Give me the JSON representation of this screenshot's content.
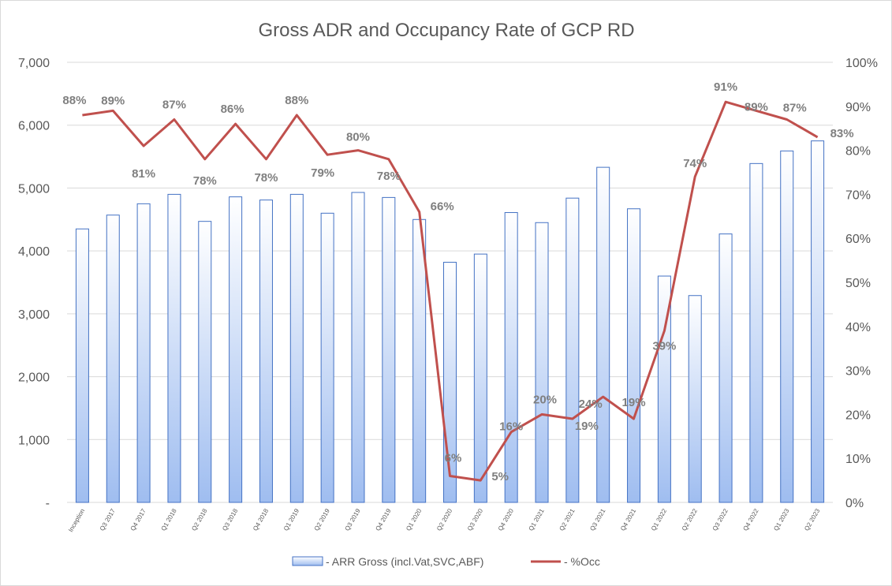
{
  "chart_data": {
    "type": "bar+line",
    "title": "Gross ADR and Occupancy Rate of GCP RD",
    "categories": [
      "Inception",
      "Q3 2017",
      "Q4 2017",
      "Q1 2018",
      "Q2 2018",
      "Q3 2018",
      "Q4 2018",
      "Q1 2019",
      "Q2 2019",
      "Q3 2019",
      "Q4 2019",
      "Q1 2020",
      "Q2 2020",
      "Q3 2020",
      "Q4 2020",
      "Q1 2021",
      "Q2 2021",
      "Q3 2021",
      "Q4 2021",
      "Q1 2022",
      "Q2 2022",
      "Q3 2022",
      "Q4 2022",
      "Q1 2023",
      "Q2 2023"
    ],
    "y_left": {
      "ylim": [
        0,
        7000
      ],
      "ticks": [
        "-",
        "1,000",
        "2,000",
        "3,000",
        "4,000",
        "5,000",
        "6,000",
        "7,000"
      ]
    },
    "y_right": {
      "ylim": [
        0,
        100
      ],
      "ticks": [
        "0%",
        "10%",
        "20%",
        "30%",
        "40%",
        "50%",
        "60%",
        "70%",
        "80%",
        "90%",
        "100%"
      ]
    },
    "grid": true,
    "legend_position": "bottom",
    "series": [
      {
        "name": "- ARR Gross (incl.Vat,SVC,ABF)",
        "kind": "bar",
        "axis": "left",
        "color": "#4472c4",
        "values": [
          4350,
          4570,
          4750,
          4900,
          4470,
          4860,
          4810,
          4900,
          4600,
          4930,
          4850,
          4500,
          3820,
          3950,
          4610,
          4450,
          4840,
          5330,
          4670,
          3600,
          3290,
          4270,
          5390,
          5590,
          5750
        ]
      },
      {
        "name": "- %Occ",
        "kind": "line",
        "axis": "right",
        "color": "#c0504d",
        "values": [
          88,
          89,
          81,
          87,
          78,
          86,
          78,
          88,
          79,
          80,
          78,
          66,
          6,
          5,
          16,
          20,
          19,
          24,
          19,
          39,
          74,
          91,
          89,
          87,
          83
        ],
        "labels": [
          "88%",
          "89%",
          "81%",
          "87%",
          "78%",
          "86%",
          "78%",
          "88%",
          "79%",
          "80%",
          "78%",
          "66%",
          "6%",
          "5%",
          "16%",
          "20%",
          "19%",
          "24%",
          "19%",
          "39%",
          "74%",
          "91%",
          "89%",
          "87%",
          "83%"
        ]
      }
    ]
  }
}
